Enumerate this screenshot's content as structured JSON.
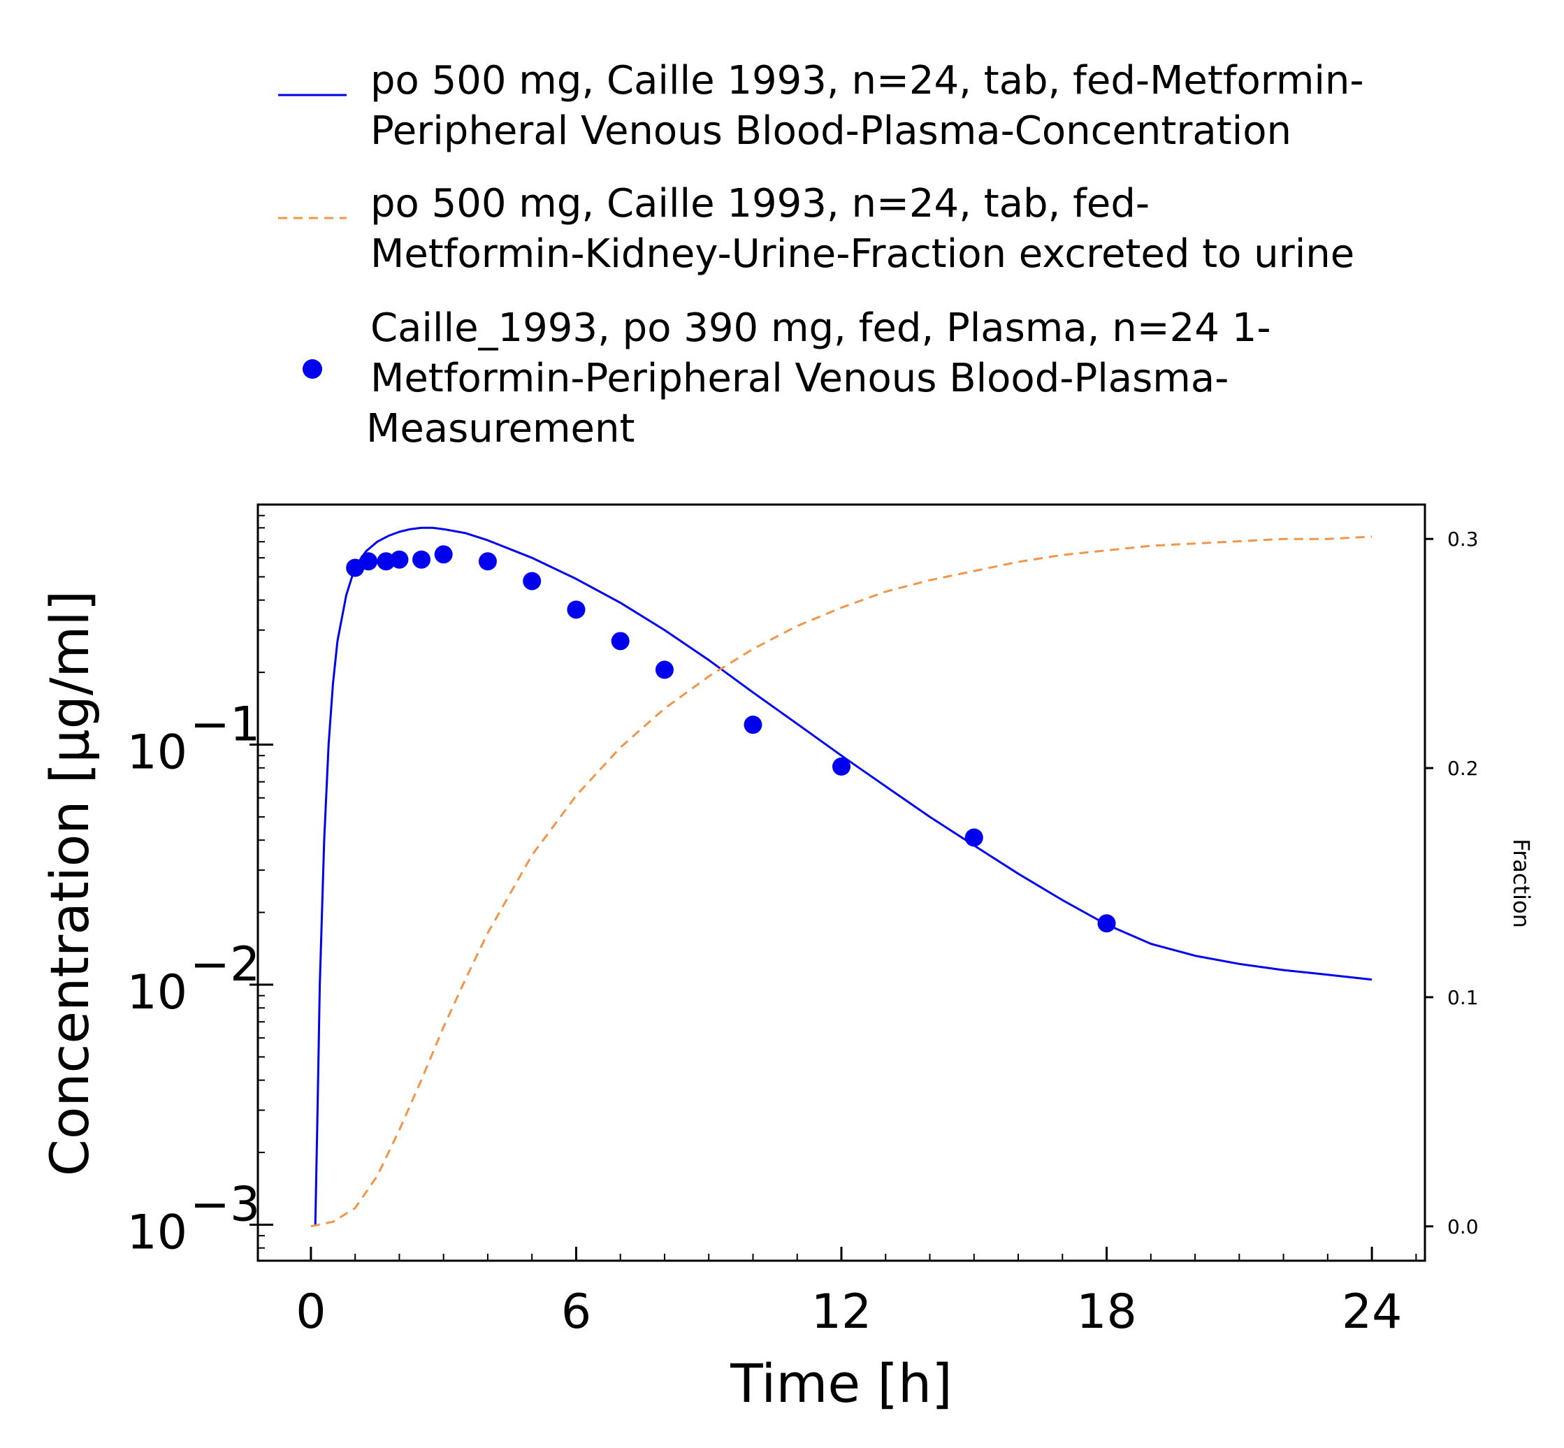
{
  "chart_data": {
    "type": "line",
    "xlabel": "Time [h]",
    "ylabel": "Concentration [µg/ml]",
    "y2label": "Fraction",
    "xlim": [
      -1.2,
      25.2
    ],
    "ylim_log10": [
      -3.15,
      0.0
    ],
    "y2lim": [
      -0.015,
      0.315
    ],
    "x_ticks": [
      "0",
      "6",
      "12",
      "18",
      "24"
    ],
    "x_tick_values": [
      0,
      6,
      12,
      18,
      24
    ],
    "y_ticks": [
      {
        "base": "10",
        "exp": "−1",
        "value": 0.1
      },
      {
        "base": "10",
        "exp": "−2",
        "value": 0.01
      },
      {
        "base": "10",
        "exp": "−3",
        "value": 0.001
      }
    ],
    "y2_ticks": [
      "0.0",
      "0.1",
      "0.2",
      "0.3"
    ],
    "y2_tick_values": [
      0.0,
      0.1,
      0.2,
      0.3
    ],
    "legend": {
      "placement": "top",
      "entries": [
        {
          "lines": [
            "po 500 mg, Caille 1993, n=24, tab, fed-Metformin-",
            "Peripheral Venous Blood-Plasma-Concentration"
          ],
          "marker": "line"
        },
        {
          "lines": [
            "po 500 mg, Caille 1993, n=24, tab, fed-",
            "Metformin-Kidney-Urine-Fraction excreted to urine"
          ],
          "marker": "dashed"
        },
        {
          "lines": [
            "Caille_1993, po 390 mg, fed, Plasma, n=24 1-",
            "Metformin-Peripheral Venous Blood-Plasma-",
            "Measurement"
          ],
          "marker": "dot"
        }
      ]
    },
    "series": [
      {
        "name": "po 500 mg, Caille 1993, n=24, tab, fed-Metformin-Peripheral Venous Blood-Plasma-Concentration",
        "axis": "left",
        "style": "solid",
        "color": "#0000ee",
        "x": [
          0.1,
          0.15,
          0.2,
          0.3,
          0.4,
          0.5,
          0.6,
          0.8,
          1.0,
          1.25,
          1.5,
          1.75,
          2.0,
          2.25,
          2.5,
          2.75,
          3.0,
          3.5,
          4.0,
          5.0,
          6.0,
          7.0,
          8.0,
          9.0,
          10.0,
          11.0,
          12.0,
          13.0,
          14.0,
          15.0,
          16.0,
          17.0,
          18.0,
          19.0,
          20.0,
          21.0,
          22.0,
          23.0,
          24.0
        ],
        "y": [
          0.001,
          0.003,
          0.01,
          0.04,
          0.1,
          0.18,
          0.27,
          0.42,
          0.55,
          0.64,
          0.7,
          0.74,
          0.77,
          0.79,
          0.8,
          0.8,
          0.79,
          0.76,
          0.71,
          0.6,
          0.49,
          0.39,
          0.3,
          0.225,
          0.165,
          0.122,
          0.09,
          0.067,
          0.05,
          0.038,
          0.029,
          0.0225,
          0.0178,
          0.0148,
          0.0132,
          0.0122,
          0.0115,
          0.011,
          0.0105
        ]
      },
      {
        "name": "po 500 mg, Caille 1993, n=24, tab, fed-Metformin-Kidney-Urine-Fraction excreted to urine",
        "axis": "right",
        "style": "dashed",
        "color": "#f0954a",
        "x": [
          0.0,
          0.5,
          1.0,
          1.5,
          2.0,
          2.5,
          3.0,
          3.5,
          4.0,
          5.0,
          6.0,
          7.0,
          8.0,
          9.0,
          10.0,
          11.0,
          12.0,
          13.0,
          14.0,
          15.0,
          16.0,
          17.0,
          18.0,
          19.0,
          20.0,
          21.0,
          22.0,
          23.0,
          24.0
        ],
        "y": [
          0.0,
          0.002,
          0.008,
          0.022,
          0.042,
          0.064,
          0.087,
          0.108,
          0.128,
          0.162,
          0.188,
          0.209,
          0.226,
          0.24,
          0.252,
          0.262,
          0.27,
          0.277,
          0.282,
          0.286,
          0.29,
          0.293,
          0.295,
          0.297,
          0.298,
          0.299,
          0.3,
          0.3,
          0.301
        ]
      },
      {
        "name": "Caille_1993, po 390 mg, fed, Plasma, n=24 1-Metformin-Peripheral Venous Blood-Plasma-Measurement",
        "axis": "left",
        "style": "markers",
        "color": "#0000ee",
        "x": [
          1.0,
          1.3,
          1.7,
          2.0,
          2.5,
          3.0,
          4.0,
          5.0,
          6.0,
          7.0,
          8.0,
          10.0,
          12.0,
          15.0,
          18.0
        ],
        "y": [
          0.545,
          0.58,
          0.58,
          0.59,
          0.59,
          0.62,
          0.58,
          0.48,
          0.365,
          0.27,
          0.205,
          0.121,
          0.081,
          0.041,
          0.018
        ]
      }
    ]
  }
}
